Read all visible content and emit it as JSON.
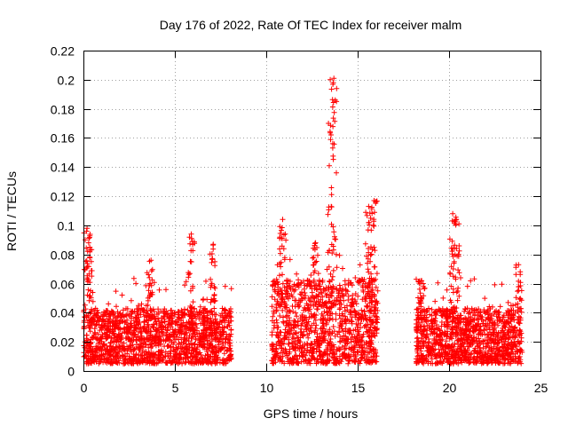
{
  "chart_data": {
    "type": "scatter",
    "title": "Day 176 of 2022, Rate Of TEC Index for receiver malm",
    "xlabel": "GPS time / hours",
    "ylabel": "ROTI / TECUs",
    "xlim": [
      0,
      25
    ],
    "ylim": [
      0,
      0.22
    ],
    "xticks": [
      0,
      5,
      10,
      15,
      20,
      25
    ],
    "xtick_labels": [
      "0",
      "5",
      "10",
      "15",
      "20",
      "25"
    ],
    "yticks": [
      0,
      0.02,
      0.04,
      0.06,
      0.08,
      0.1,
      0.12,
      0.14,
      0.16,
      0.18,
      0.2,
      0.22
    ],
    "ytick_labels": [
      "0",
      "0.02",
      "0.04",
      "0.06",
      "0.08",
      "0.1",
      "0.12",
      "0.14",
      "0.16",
      "0.18",
      "0.2",
      "0.22"
    ],
    "grid": true,
    "marker": "plus",
    "color": "#ff0000",
    "series": [
      {
        "name": "ROTI",
        "data_segments": [
          {
            "x_start": 0.0,
            "x_end": 8.1,
            "typical_max": 0.04,
            "notable_peaks": [
              [
                0.2,
                0.098
              ],
              [
                0.35,
                0.085
              ],
              [
                3.7,
                0.076
              ],
              [
                5.9,
                0.094
              ],
              [
                7.1,
                0.087
              ]
            ]
          },
          {
            "x_start": 10.3,
            "x_end": 16.1,
            "typical_max": 0.06,
            "notable_peaks": [
              [
                10.9,
                0.104
              ],
              [
                12.7,
                0.088
              ],
              [
                13.5,
                0.2
              ],
              [
                13.7,
                0.201
              ],
              [
                15.6,
                0.113
              ],
              [
                15.9,
                0.117
              ]
            ]
          },
          {
            "x_start": 18.2,
            "x_end": 24.0,
            "typical_max": 0.04,
            "notable_peaks": [
              [
                18.5,
                0.062
              ],
              [
                20.2,
                0.108
              ],
              [
                20.4,
                0.104
              ],
              [
                23.8,
                0.073
              ]
            ]
          }
        ]
      }
    ]
  }
}
